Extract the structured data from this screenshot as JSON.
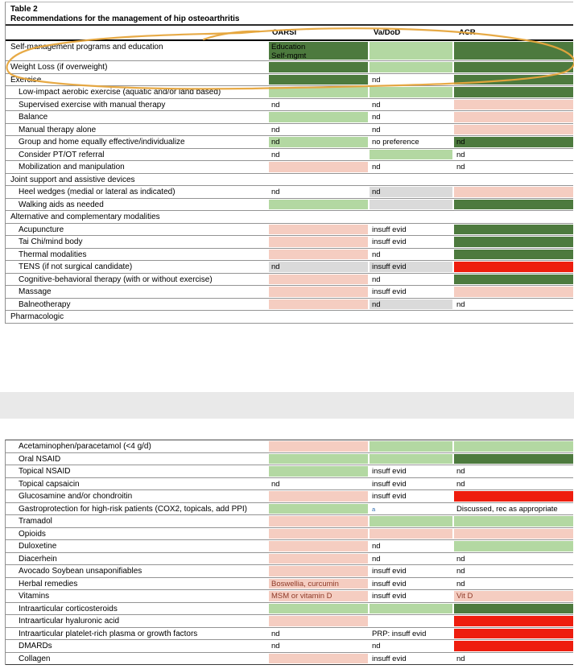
{
  "caption": {
    "number": "Table 2",
    "title": "Recommendations for the management of hip osteoarthritis"
  },
  "columns": [
    "OARSI",
    "Va/DoD",
    "ACR"
  ],
  "palette": {
    "dark_green": "#4d7a3e",
    "light_green": "#b3d8a2",
    "pink": "#f5cdc1",
    "red": "#ee1d0e",
    "gray": "#dadada",
    "none": "transparent",
    "red_text": "#8e3a28",
    "annotation_orange": "#e6a53c"
  },
  "annotation": {
    "color": "#e6a53c"
  },
  "table_top": {
    "rows": [
      {
        "label": "Self-management programs and education",
        "indent": 0,
        "tall": true,
        "cells": [
          {
            "bg": "dark_green",
            "text": "Education\nSelf-mgmt"
          },
          {
            "bg": "light_green"
          },
          {
            "bg": "dark_green"
          }
        ]
      },
      {
        "label": "Weight Loss (if overweight)",
        "indent": 0,
        "cells": [
          {
            "bg": "dark_green"
          },
          {
            "bg": "light_green"
          },
          {
            "bg": "dark_green"
          }
        ]
      },
      {
        "label": "Exercise",
        "indent": 0,
        "cells": [
          {
            "bg": "dark_green"
          },
          {
            "bg": "none",
            "text": "nd"
          },
          {
            "bg": "dark_green"
          }
        ]
      },
      {
        "label": "Low-impact aerobic exercise (aquatic and/or land based)",
        "indent": 1,
        "cells": [
          {
            "bg": "light_green"
          },
          {
            "bg": "light_green"
          },
          {
            "bg": "dark_green"
          }
        ]
      },
      {
        "label": "Supervised exercise with manual therapy",
        "indent": 1,
        "cells": [
          {
            "bg": "none",
            "text": "nd"
          },
          {
            "bg": "none",
            "text": "nd"
          },
          {
            "bg": "pink"
          }
        ]
      },
      {
        "label": "Balance",
        "indent": 1,
        "cells": [
          {
            "bg": "light_green"
          },
          {
            "bg": "none",
            "text": "nd"
          },
          {
            "bg": "pink"
          }
        ]
      },
      {
        "label": "Manual therapy alone",
        "indent": 1,
        "cells": [
          {
            "bg": "none",
            "text": "nd"
          },
          {
            "bg": "none",
            "text": "nd"
          },
          {
            "bg": "pink"
          }
        ]
      },
      {
        "label": "Group and home equally effective/individualize",
        "indent": 1,
        "cells": [
          {
            "bg": "light_green",
            "text": "nd"
          },
          {
            "bg": "none",
            "text": "no preference"
          },
          {
            "bg": "dark_green",
            "text": "nd"
          }
        ]
      },
      {
        "label": "Consider PT/OT referral",
        "indent": 1,
        "cells": [
          {
            "bg": "none",
            "text": "nd"
          },
          {
            "bg": "light_green"
          },
          {
            "bg": "none",
            "text": "nd"
          }
        ]
      },
      {
        "label": "Mobilization and manipulation",
        "indent": 1,
        "cells": [
          {
            "bg": "pink"
          },
          {
            "bg": "none",
            "text": "nd"
          },
          {
            "bg": "none",
            "text": "nd"
          }
        ]
      },
      {
        "label": "Joint support and assistive devices",
        "indent": 0,
        "section": true,
        "cells": [
          {
            "bg": "none"
          },
          {
            "bg": "none"
          },
          {
            "bg": "none"
          }
        ]
      },
      {
        "label": "Heel wedges (medial or lateral as indicated)",
        "indent": 1,
        "cells": [
          {
            "bg": "none",
            "text": "nd"
          },
          {
            "bg": "gray",
            "text": "nd"
          },
          {
            "bg": "pink"
          }
        ]
      },
      {
        "label": "Walking aids as needed",
        "indent": 1,
        "cells": [
          {
            "bg": "light_green"
          },
          {
            "bg": "gray"
          },
          {
            "bg": "dark_green"
          }
        ]
      },
      {
        "label": "Alternative and complementary modalities",
        "indent": 0,
        "section": true,
        "cells": [
          {
            "bg": "none"
          },
          {
            "bg": "none"
          },
          {
            "bg": "none"
          }
        ]
      },
      {
        "label": "Acupuncture",
        "indent": 1,
        "cells": [
          {
            "bg": "pink"
          },
          {
            "bg": "none",
            "text": "insuff evid"
          },
          {
            "bg": "dark_green"
          }
        ]
      },
      {
        "label": "Tai Chi/mind body",
        "indent": 1,
        "cells": [
          {
            "bg": "pink"
          },
          {
            "bg": "none",
            "text": "insuff evid"
          },
          {
            "bg": "dark_green"
          }
        ]
      },
      {
        "label": "Thermal modalities",
        "indent": 1,
        "cells": [
          {
            "bg": "pink"
          },
          {
            "bg": "none",
            "text": "nd"
          },
          {
            "bg": "dark_green"
          }
        ]
      },
      {
        "label": "TENS (if not surgical candidate)",
        "indent": 1,
        "cells": [
          {
            "bg": "gray",
            "text": "nd"
          },
          {
            "bg": "gray",
            "text": "insuff evid"
          },
          {
            "bg": "red"
          }
        ]
      },
      {
        "label": "Cognitive-behavioral therapy (with or without exercise)",
        "indent": 1,
        "cells": [
          {
            "bg": "pink"
          },
          {
            "bg": "none",
            "text": "nd"
          },
          {
            "bg": "dark_green"
          }
        ]
      },
      {
        "label": "Massage",
        "indent": 1,
        "cells": [
          {
            "bg": "pink"
          },
          {
            "bg": "none",
            "text": "insuff evid"
          },
          {
            "bg": "pink"
          }
        ]
      },
      {
        "label": "Balneotherapy",
        "indent": 1,
        "cells": [
          {
            "bg": "pink"
          },
          {
            "bg": "gray",
            "text": "nd"
          },
          {
            "bg": "none",
            "text": "nd"
          }
        ]
      },
      {
        "label": "Pharmacologic",
        "indent": 0,
        "section": true,
        "cells": [
          {
            "bg": "none"
          },
          {
            "bg": "none"
          },
          {
            "bg": "none"
          }
        ]
      }
    ]
  },
  "table_bottom": {
    "rows": [
      {
        "label": "Acetaminophen/paracetamol (<4 g/d)",
        "indent": 1,
        "cells": [
          {
            "bg": "pink"
          },
          {
            "bg": "light_green"
          },
          {
            "bg": "light_green"
          }
        ]
      },
      {
        "label": "Oral NSAID",
        "indent": 1,
        "cells": [
          {
            "bg": "light_green"
          },
          {
            "bg": "light_green"
          },
          {
            "bg": "dark_green"
          }
        ]
      },
      {
        "label": "Topical NSAID",
        "indent": 1,
        "cells": [
          {
            "bg": "light_green"
          },
          {
            "bg": "none",
            "text": "insuff evid"
          },
          {
            "bg": "none",
            "text": "nd"
          }
        ]
      },
      {
        "label": "Topical capsaicin",
        "indent": 1,
        "cells": [
          {
            "bg": "none",
            "text": "nd"
          },
          {
            "bg": "none",
            "text": "insuff evid"
          },
          {
            "bg": "none",
            "text": "nd"
          }
        ]
      },
      {
        "label": "Glucosamine and/or chondroitin",
        "indent": 1,
        "cells": [
          {
            "bg": "pink"
          },
          {
            "bg": "none",
            "text": "insuff evid"
          },
          {
            "bg": "red"
          }
        ]
      },
      {
        "label": "Gastroprotection for high-risk patients (COX2, topicals, add PPI)",
        "indent": 1,
        "cells": [
          {
            "bg": "light_green"
          },
          {
            "bg": "none",
            "text": "a",
            "sup": true
          },
          {
            "bg": "none",
            "text": "Discussed, rec as appropriate"
          }
        ]
      },
      {
        "label": "Tramadol",
        "indent": 1,
        "cells": [
          {
            "bg": "pink"
          },
          {
            "bg": "light_green"
          },
          {
            "bg": "light_green"
          }
        ]
      },
      {
        "label": "Opioids",
        "indent": 1,
        "cells": [
          {
            "bg": "pink"
          },
          {
            "bg": "pink"
          },
          {
            "bg": "pink"
          }
        ]
      },
      {
        "label": "Duloxetine",
        "indent": 1,
        "cells": [
          {
            "bg": "pink"
          },
          {
            "bg": "none",
            "text": "nd"
          },
          {
            "bg": "light_green"
          }
        ]
      },
      {
        "label": "Diacerhein",
        "indent": 1,
        "cells": [
          {
            "bg": "pink"
          },
          {
            "bg": "none",
            "text": "nd"
          },
          {
            "bg": "none",
            "text": "nd"
          }
        ]
      },
      {
        "label": "Avocado Soybean unsaponifiables",
        "indent": 1,
        "cells": [
          {
            "bg": "pink"
          },
          {
            "bg": "none",
            "text": "insuff evid"
          },
          {
            "bg": "none",
            "text": "nd"
          }
        ]
      },
      {
        "label": "Herbal remedies",
        "indent": 1,
        "cells": [
          {
            "bg": "pink",
            "text": "Boswellia, curcumin",
            "tc": "red_text"
          },
          {
            "bg": "none",
            "text": "insuff evid"
          },
          {
            "bg": "none",
            "text": "nd"
          }
        ]
      },
      {
        "label": "Vitamins",
        "indent": 1,
        "cells": [
          {
            "bg": "pink",
            "text": "MSM or vitamin D",
            "tc": "red_text"
          },
          {
            "bg": "none",
            "text": "insuff evid"
          },
          {
            "bg": "pink",
            "text": "Vit D",
            "tc": "red_text"
          }
        ]
      },
      {
        "label": "Intraarticular corticosteroids",
        "indent": 1,
        "cells": [
          {
            "bg": "light_green"
          },
          {
            "bg": "light_green"
          },
          {
            "bg": "dark_green"
          }
        ]
      },
      {
        "label": "Intraarticular hyaluronic acid",
        "indent": 1,
        "cells": [
          {
            "bg": "pink"
          },
          {
            "bg": "none"
          },
          {
            "bg": "red"
          }
        ]
      },
      {
        "label": "Intraarticular platelet-rich plasma or growth factors",
        "indent": 1,
        "cells": [
          {
            "bg": "none",
            "text": "nd"
          },
          {
            "bg": "none",
            "text": "PRP: insuff evid"
          },
          {
            "bg": "red"
          }
        ]
      },
      {
        "label": "DMARDs",
        "indent": 1,
        "cells": [
          {
            "bg": "none",
            "text": "nd"
          },
          {
            "bg": "none",
            "text": "nd"
          },
          {
            "bg": "red"
          }
        ]
      },
      {
        "label": "Collagen",
        "indent": 1,
        "cells": [
          {
            "bg": "pink"
          },
          {
            "bg": "none",
            "text": "insuff evid"
          },
          {
            "bg": "none",
            "text": "nd"
          }
        ]
      }
    ]
  }
}
